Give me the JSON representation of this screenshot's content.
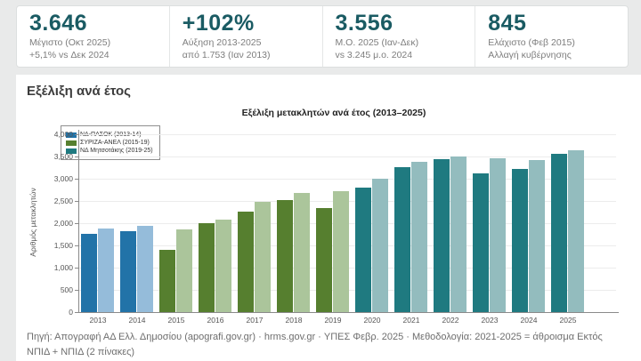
{
  "stats_cards": [
    {
      "value": "3.646",
      "line1": "Μέγιστο (Οκτ 2025)",
      "line2": "+5,1% vs Δεκ 2024"
    },
    {
      "value": "+102%",
      "line1": "Αύξηση 2013-2025",
      "line2": "από 1.753 (Ιαν 2013)"
    },
    {
      "value": "3.556",
      "line1": "Μ.Ο. 2025 (Ιαν-Δεκ)",
      "line2": "vs 3.245 μ.ο. 2024"
    },
    {
      "value": "845",
      "line1": "Ελάχιστο (Φεβ 2015)",
      "line2": "Αλλαγή κυβέρνησης"
    }
  ],
  "section_title": "Εξέλιξη ανά έτος",
  "chart_data": {
    "type": "bar",
    "title": "Εξέλιξη μετακλητών ανά έτος (2013–2025)",
    "ylabel": "Αριθμός μετακλητών",
    "xlabel": "",
    "ylim": [
      0,
      4000
    ],
    "grid": true,
    "legend_position": "upper left",
    "ytick_values": [
      0,
      500,
      1000,
      1500,
      2000,
      2500,
      3000,
      3500,
      4000
    ],
    "ytick_labels": [
      "0",
      "500",
      "1,000",
      "1,500",
      "2,000",
      "2,500",
      "3,000",
      "3,500",
      "4,000"
    ],
    "categories": [
      "2013",
      "2014",
      "2015",
      "2016",
      "2017",
      "2018",
      "2019",
      "2020",
      "2021",
      "2022",
      "2023",
      "2024",
      "2025"
    ],
    "series": [
      {
        "name": "dark",
        "values": [
          1753,
          1820,
          1400,
          2010,
          2270,
          2530,
          2350,
          2810,
          3260,
          3440,
          3120,
          3230,
          3556
        ]
      },
      {
        "name": "light",
        "values": [
          1880,
          1940,
          1870,
          2090,
          2480,
          2680,
          2720,
          3000,
          3380,
          3500,
          3470,
          3430,
          3646
        ]
      }
    ],
    "groups": [
      {
        "label": "ΝΔ-ΠΑΣΟΚ (2013-14)",
        "range": [
          0,
          1
        ],
        "dark": "#2273a8",
        "light": "#95bcda"
      },
      {
        "label": "ΣΥΡΙΖΑ-ΑΝΕΛ (2015-19)",
        "range": [
          2,
          6
        ],
        "dark": "#567f2f",
        "light": "#abc59b"
      },
      {
        "label": "ΝΔ Μητσοτάκης (2019-25)",
        "range": [
          7,
          12
        ],
        "dark": "#1f7a80",
        "light": "#93bcbe"
      }
    ]
  },
  "footer": "Πηγή: Απογραφή ΑΔ Ελλ. Δημοσίου (apografi.gov.gr) · hrms.gov.gr · ΥΠΕΣ Φεβρ. 2025 · Μεθοδολογία: 2021-2025 = άθροισμα Εκτός ΝΠΙΔ + ΝΠΙΔ (2 πίνακες)"
}
